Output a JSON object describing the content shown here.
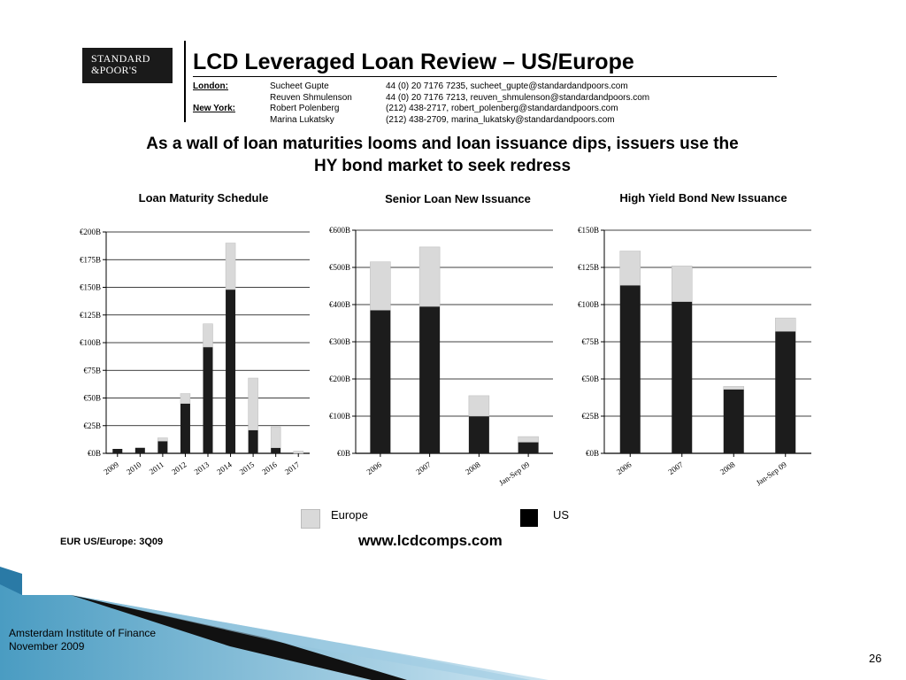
{
  "logo": {
    "line1": "STANDARD",
    "line2": "&POOR'S"
  },
  "header": {
    "title": "LCD Leveraged Loan Review – US/Europe",
    "contacts": [
      {
        "city": "London:",
        "person": "Sucheet Gupte",
        "info": "44 (0) 20 7176 7235, sucheet_gupte@standardandpoors.com"
      },
      {
        "city": "",
        "person": "Reuven Shmulenson",
        "info": "44 (0) 20 7176 7213, reuven_shmulenson@standardandpoors.com"
      },
      {
        "city": "New York:",
        "person": "Robert Polenberg",
        "info": "(212) 438-2717, robert_polenberg@standardandpoors.com"
      },
      {
        "city": "",
        "person": "Marina Lukatsky",
        "info": "(212) 438-2709, marina_lukatsky@standardandpoors.com"
      }
    ]
  },
  "headline": {
    "line1": "As a wall of loan maturities looms and loan issuance dips, issuers use the",
    "line2": "HY bond market to seek redress"
  },
  "colors": {
    "us": "#1c1c1c",
    "europe": "#d9d9d9"
  },
  "chart_data": [
    {
      "type": "bar",
      "stacked": true,
      "title": "Loan Maturity Schedule",
      "categories": [
        "2009",
        "2010",
        "2011",
        "2012",
        "2013",
        "2014",
        "2015",
        "2016",
        "2017"
      ],
      "series": [
        {
          "name": "US",
          "values": [
            4,
            5,
            11,
            45,
            96,
            148,
            21,
            5,
            0
          ]
        },
        {
          "name": "Europe",
          "values": [
            0,
            0,
            3,
            9,
            21,
            42,
            47,
            19,
            2
          ]
        }
      ],
      "yticks": [
        "€0B",
        "€25B",
        "€50B",
        "€75B",
        "€100B",
        "€125B",
        "€150B",
        "€175B",
        "€200B"
      ],
      "ylim": [
        0,
        200
      ]
    },
    {
      "type": "bar",
      "stacked": true,
      "title": "Senior Loan New Issuance",
      "categories": [
        "2006",
        "2007",
        "2008",
        "Jan-Sep 09"
      ],
      "series": [
        {
          "name": "US",
          "values": [
            385,
            395,
            100,
            30
          ]
        },
        {
          "name": "Europe",
          "values": [
            130,
            160,
            55,
            15
          ]
        }
      ],
      "yticks": [
        "€0B",
        "€100B",
        "€200B",
        "€300B",
        "€400B",
        "€500B",
        "€600B"
      ],
      "ylim": [
        0,
        600
      ]
    },
    {
      "type": "bar",
      "stacked": true,
      "title": "High Yield Bond New Issuance",
      "categories": [
        "2006",
        "2007",
        "2008",
        "Jan-Sep 09"
      ],
      "series": [
        {
          "name": "US",
          "values": [
            113,
            102,
            43,
            82
          ]
        },
        {
          "name": "Europe",
          "values": [
            23,
            24,
            2,
            9
          ]
        }
      ],
      "yticks": [
        "€0B",
        "€25B",
        "€50B",
        "€75B",
        "€100B",
        "€125B",
        "€150B"
      ],
      "ylim": [
        0,
        150
      ]
    }
  ],
  "legend": {
    "europe": "Europe",
    "us": "US"
  },
  "footer": {
    "note": "EUR US/Europe: 3Q09",
    "url": "www.lcdcomps.com"
  },
  "slide": {
    "institute": "Amsterdam Institute of Finance",
    "date": "November 2009",
    "page": "26"
  }
}
